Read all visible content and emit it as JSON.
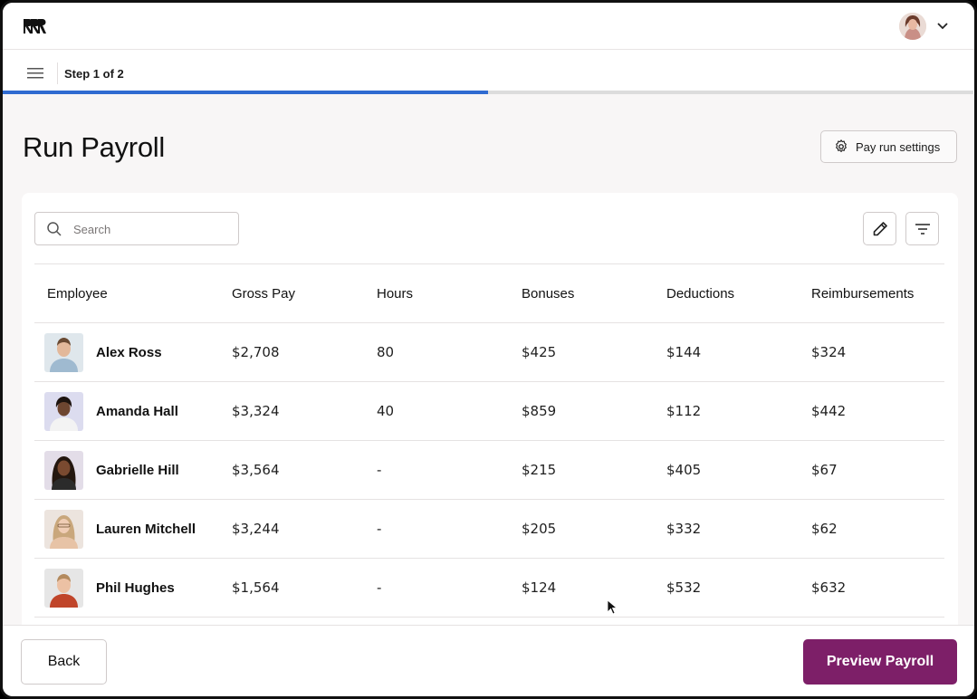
{
  "header": {
    "logo_icon": "brand-logo-icon",
    "avatar_icon": "user-avatar",
    "menu_icon": "chevron-down-icon"
  },
  "stepbar": {
    "menu_icon": "hamburger-menu-icon",
    "step_label": "Step 1 of 2",
    "progress": 0.5,
    "progress_color": "#2f6bd1"
  },
  "page": {
    "title": "Run Payroll",
    "settings_button_label": "Pay run settings",
    "settings_icon": "gear-icon"
  },
  "toolbar": {
    "search_placeholder": "Search",
    "search_icon": "search-icon",
    "edit_icon": "pencil-icon",
    "filter_icon": "filter-icon"
  },
  "table": {
    "columns": [
      "Employee",
      "Gross Pay",
      "Hours",
      "Bonuses",
      "Deductions",
      "Reimbursements"
    ],
    "rows": [
      {
        "name": "Alex Ross",
        "gross_pay": "$2,708",
        "hours": "80",
        "bonuses": "$425",
        "deductions": "$144",
        "reimbursements": "$324"
      },
      {
        "name": "Amanda Hall",
        "gross_pay": "$3,324",
        "hours": "40",
        "bonuses": "$859",
        "deductions": "$112",
        "reimbursements": "$442"
      },
      {
        "name": "Gabrielle Hill",
        "gross_pay": "$3,564",
        "hours": "-",
        "bonuses": "$215",
        "deductions": "$405",
        "reimbursements": "$67"
      },
      {
        "name": "Lauren Mitchell",
        "gross_pay": "$3,244",
        "hours": "-",
        "bonuses": "$205",
        "deductions": "$332",
        "reimbursements": "$62"
      },
      {
        "name": "Phil Hughes",
        "gross_pay": "$1,564",
        "hours": "-",
        "bonuses": "$124",
        "deductions": "$532",
        "reimbursements": "$632"
      }
    ]
  },
  "footer": {
    "back_label": "Back",
    "preview_label": "Preview Payroll",
    "accent_color": "#7d1f68"
  }
}
